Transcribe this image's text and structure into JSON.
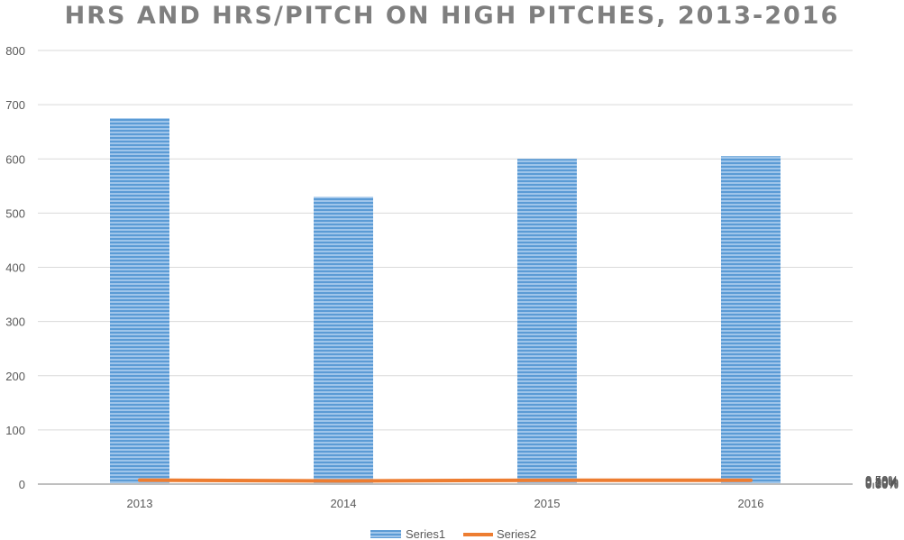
{
  "chart_data": {
    "type": "bar",
    "title": "HRS AND HRS/PITCH ON HIGH PITCHES, 2013-2016",
    "categories": [
      "2013",
      "2014",
      "2015",
      "2016"
    ],
    "series": [
      {
        "name": "Series1",
        "type": "bar",
        "axis": "left",
        "color": "#5b9bd5",
        "values": [
          675,
          530,
          600,
          605
        ]
      },
      {
        "name": "Series2",
        "type": "line",
        "axis": "right",
        "color": "#ed7d31",
        "values": [
          0.453,
          0.367,
          0.448,
          0.442
        ]
      }
    ],
    "ylim": [
      0,
      800
    ],
    "y_ticks": [
      "0",
      "100",
      "200",
      "300",
      "400",
      "500",
      "600",
      "700",
      "800"
    ],
    "y2lim": [
      0,
      0.5
    ],
    "y2_ticks": [
      "0.00%",
      "0.10%",
      "0.20%",
      "0.30%",
      "0.40%",
      "0.50%"
    ],
    "grid": true,
    "legend": "bottom"
  }
}
